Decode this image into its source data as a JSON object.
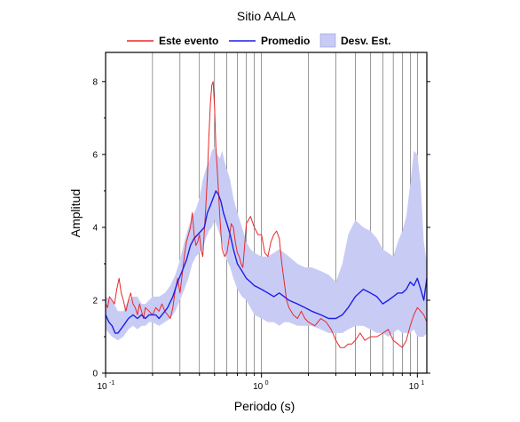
{
  "chart_data": {
    "type": "line",
    "title": "Sitio AALA",
    "xlabel": "Periodo (s)",
    "ylabel": "Amplitud",
    "x_scale": "log",
    "xlim": [
      0.1,
      11.5
    ],
    "ylim": [
      0,
      8.8
    ],
    "grid": "vertical-log",
    "legend_position": "top",
    "y_ticks": [
      0,
      2,
      4,
      6,
      8
    ],
    "x_ticks": [
      {
        "value": 0.1,
        "base": "10",
        "exp": "-1"
      },
      {
        "value": 1,
        "base": "10",
        "exp": "0"
      },
      {
        "value": 10,
        "base": "10",
        "exp": "1"
      }
    ],
    "series": [
      {
        "name": "Este evento",
        "color": "#e8282a",
        "x": [
          0.1,
          0.103,
          0.106,
          0.11,
          0.114,
          0.118,
          0.122,
          0.126,
          0.13,
          0.135,
          0.14,
          0.145,
          0.15,
          0.155,
          0.16,
          0.165,
          0.17,
          0.175,
          0.18,
          0.19,
          0.2,
          0.21,
          0.22,
          0.23,
          0.24,
          0.25,
          0.26,
          0.27,
          0.28,
          0.29,
          0.3,
          0.31,
          0.32,
          0.33,
          0.34,
          0.35,
          0.36,
          0.37,
          0.38,
          0.39,
          0.4,
          0.41,
          0.42,
          0.43,
          0.44,
          0.45,
          0.46,
          0.47,
          0.48,
          0.49,
          0.5,
          0.51,
          0.52,
          0.53,
          0.54,
          0.55,
          0.56,
          0.58,
          0.6,
          0.62,
          0.64,
          0.66,
          0.68,
          0.7,
          0.72,
          0.74,
          0.76,
          0.78,
          0.8,
          0.85,
          0.9,
          0.95,
          1.0,
          1.05,
          1.1,
          1.15,
          1.2,
          1.25,
          1.3,
          1.35,
          1.4,
          1.45,
          1.5,
          1.6,
          1.7,
          1.8,
          1.9,
          2.0,
          2.2,
          2.4,
          2.6,
          2.8,
          3.0,
          3.2,
          3.4,
          3.6,
          3.8,
          4.0,
          4.3,
          4.6,
          5.0,
          5.5,
          6.0,
          6.5,
          7.0,
          7.5,
          8.0,
          8.5,
          9.0,
          9.5,
          10.0,
          10.5,
          11.0,
          11.5
        ],
        "y": [
          1.9,
          1.8,
          2.1,
          2.0,
          1.9,
          2.3,
          2.6,
          2.2,
          2.0,
          1.7,
          2.0,
          2.2,
          1.9,
          1.8,
          1.6,
          1.9,
          1.7,
          1.5,
          1.8,
          1.7,
          1.6,
          1.8,
          1.7,
          1.9,
          1.7,
          1.6,
          1.5,
          1.8,
          2.3,
          2.6,
          2.2,
          2.7,
          3.2,
          3.6,
          3.8,
          4.0,
          4.4,
          3.8,
          3.5,
          3.6,
          3.8,
          3.4,
          3.2,
          3.9,
          4.6,
          5.4,
          6.5,
          7.4,
          7.9,
          8.0,
          7.3,
          6.2,
          5.6,
          5.0,
          4.3,
          3.8,
          3.4,
          3.2,
          3.3,
          3.7,
          4.1,
          4.0,
          3.6,
          3.3,
          3.2,
          3.0,
          2.9,
          3.5,
          4.1,
          4.3,
          4.0,
          3.8,
          3.8,
          3.3,
          3.2,
          3.6,
          3.8,
          3.9,
          3.7,
          3.0,
          2.5,
          2.0,
          1.8,
          1.6,
          1.5,
          1.7,
          1.5,
          1.4,
          1.3,
          1.5,
          1.4,
          1.2,
          0.9,
          0.7,
          0.7,
          0.8,
          0.8,
          0.9,
          1.1,
          0.9,
          1.0,
          1.0,
          1.1,
          1.2,
          0.9,
          0.8,
          0.7,
          0.9,
          1.3,
          1.6,
          1.8,
          1.7,
          1.6,
          1.4
        ]
      },
      {
        "name": "Promedio",
        "color": "#1e1ee6",
        "x": [
          0.1,
          0.105,
          0.11,
          0.115,
          0.12,
          0.13,
          0.14,
          0.15,
          0.16,
          0.17,
          0.18,
          0.19,
          0.2,
          0.21,
          0.22,
          0.23,
          0.24,
          0.25,
          0.27,
          0.29,
          0.31,
          0.33,
          0.35,
          0.37,
          0.39,
          0.41,
          0.43,
          0.45,
          0.47,
          0.49,
          0.51,
          0.53,
          0.55,
          0.57,
          0.6,
          0.63,
          0.66,
          0.7,
          0.75,
          0.8,
          0.85,
          0.9,
          1.0,
          1.1,
          1.2,
          1.3,
          1.4,
          1.5,
          1.7,
          1.9,
          2.1,
          2.4,
          2.7,
          3.0,
          3.3,
          3.6,
          4.0,
          4.5,
          5.0,
          5.5,
          6.0,
          6.5,
          7.0,
          7.5,
          8.0,
          8.5,
          9.0,
          9.5,
          10.0,
          10.5,
          11.0,
          11.5
        ],
        "y": [
          1.6,
          1.4,
          1.3,
          1.1,
          1.1,
          1.3,
          1.5,
          1.6,
          1.5,
          1.6,
          1.5,
          1.6,
          1.6,
          1.6,
          1.5,
          1.6,
          1.7,
          1.8,
          2.1,
          2.5,
          2.8,
          3.1,
          3.5,
          3.7,
          3.8,
          3.9,
          4.0,
          4.4,
          4.6,
          4.8,
          5.0,
          4.9,
          4.7,
          4.4,
          4.1,
          3.8,
          3.4,
          3.0,
          2.8,
          2.6,
          2.5,
          2.4,
          2.3,
          2.2,
          2.1,
          2.2,
          2.1,
          2.0,
          1.9,
          1.8,
          1.7,
          1.6,
          1.5,
          1.5,
          1.6,
          1.8,
          2.1,
          2.3,
          2.2,
          2.1,
          1.9,
          2.0,
          2.1,
          2.2,
          2.2,
          2.3,
          2.5,
          2.4,
          2.6,
          2.3,
          2.0,
          2.6
        ]
      },
      {
        "name": "Desv. Est.",
        "color": "#c8ccf5",
        "x": [
          0.1,
          0.11,
          0.12,
          0.13,
          0.14,
          0.15,
          0.16,
          0.17,
          0.18,
          0.19,
          0.2,
          0.22,
          0.24,
          0.26,
          0.28,
          0.3,
          0.32,
          0.34,
          0.36,
          0.38,
          0.4,
          0.42,
          0.44,
          0.46,
          0.48,
          0.5,
          0.52,
          0.54,
          0.56,
          0.58,
          0.6,
          0.63,
          0.66,
          0.7,
          0.75,
          0.8,
          0.85,
          0.9,
          1.0,
          1.1,
          1.2,
          1.3,
          1.4,
          1.5,
          1.7,
          1.9,
          2.1,
          2.4,
          2.7,
          3.0,
          3.3,
          3.6,
          4.0,
          4.5,
          5.0,
          5.5,
          6.0,
          6.5,
          7.0,
          7.5,
          8.0,
          8.5,
          9.0,
          9.5,
          10.0,
          10.5,
          11.0,
          11.5
        ],
        "upper": [
          2.1,
          2.0,
          1.7,
          1.7,
          2.0,
          2.1,
          2.1,
          1.9,
          1.9,
          2.0,
          2.1,
          2.1,
          2.2,
          2.4,
          2.7,
          3.1,
          3.6,
          4.0,
          4.3,
          4.5,
          4.8,
          5.3,
          5.6,
          5.8,
          6.1,
          6.2,
          6.0,
          5.9,
          6.1,
          5.8,
          5.6,
          5.3,
          4.8,
          4.4,
          4.0,
          3.6,
          3.4,
          3.3,
          3.2,
          3.2,
          3.3,
          3.4,
          3.3,
          3.2,
          3.0,
          2.9,
          2.9,
          2.8,
          2.7,
          2.5,
          3.0,
          3.8,
          4.2,
          4.0,
          3.9,
          3.7,
          3.4,
          3.3,
          3.2,
          3.6,
          3.9,
          4.3,
          5.2,
          6.1,
          6.0,
          5.2,
          3.6,
          3.0
        ],
        "lower": [
          1.2,
          1.0,
          0.9,
          1.0,
          1.2,
          1.3,
          1.2,
          1.3,
          1.3,
          1.4,
          1.4,
          1.3,
          1.4,
          1.5,
          1.7,
          2.0,
          2.3,
          2.6,
          3.0,
          3.2,
          3.3,
          3.4,
          3.7,
          3.9,
          4.0,
          4.2,
          4.0,
          3.8,
          3.6,
          3.3,
          3.1,
          2.9,
          2.6,
          2.3,
          2.1,
          2.0,
          1.8,
          1.6,
          1.5,
          1.4,
          1.4,
          1.3,
          1.4,
          1.4,
          1.3,
          1.3,
          1.3,
          1.2,
          1.1,
          1.1,
          1.1,
          1.2,
          1.3,
          1.3,
          1.2,
          1.1,
          1.1,
          1.0,
          1.1,
          1.2,
          1.1,
          1.1,
          1.1,
          1.2,
          1.0,
          1.0,
          1.0,
          1.1
        ]
      }
    ]
  }
}
